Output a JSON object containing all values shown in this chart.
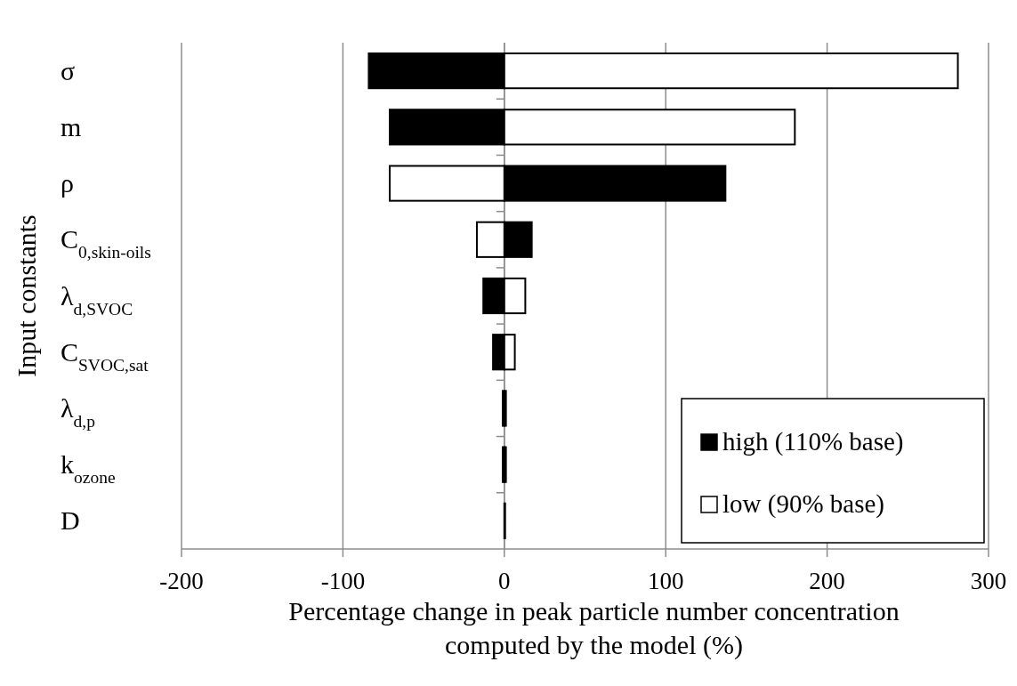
{
  "chart_data": {
    "type": "bar",
    "orientation": "horizontal",
    "xlabel": "Percentage change in peak particle number concentration computed by the model (%)",
    "ylabel": "Input constants",
    "categories": [
      "σ",
      "m",
      "ρ",
      "C$_{0,skin-oils}$",
      "λ$_{d,SVOC}$",
      "C$_{SVOC,sat}$",
      "λ$_{d,p}$",
      "k$_{ozone}$",
      "D"
    ],
    "series": [
      {
        "name": "high (110% base)",
        "color": "#000000",
        "values": [
          -84,
          -71,
          137,
          17,
          -13,
          -7,
          -1,
          -1,
          0.5
        ]
      },
      {
        "name": "low (90% base)",
        "color": "#ffffff",
        "values": [
          281,
          180,
          -71,
          -17,
          13,
          6.5,
          1,
          1,
          0
        ]
      }
    ],
    "xlim": [
      -200,
      300
    ],
    "xticks": [
      -200,
      -100,
      0,
      100,
      200,
      300
    ],
    "grid": "x",
    "stacked": true,
    "legend": "bottom right"
  }
}
